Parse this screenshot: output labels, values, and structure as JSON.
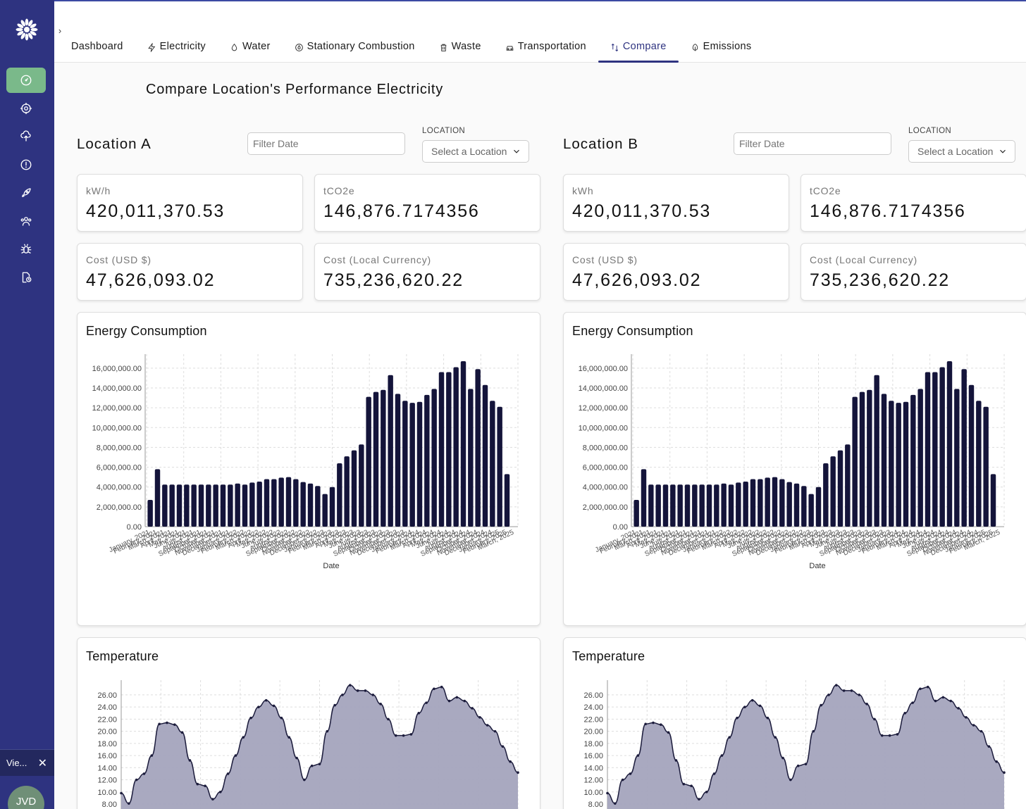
{
  "sidebar": {
    "items": [
      {
        "icon": "gauge-icon",
        "active": true
      },
      {
        "icon": "target-icon",
        "active": false
      },
      {
        "icon": "cloud-upload-icon",
        "active": false
      },
      {
        "icon": "alert-circle-icon",
        "active": false
      },
      {
        "icon": "rocket-icon",
        "active": false
      },
      {
        "icon": "users-icon",
        "active": false
      },
      {
        "icon": "bug-icon",
        "active": false
      },
      {
        "icon": "file-clock-icon",
        "active": false
      }
    ],
    "toast": {
      "label": "Vie...",
      "close": "✕"
    },
    "avatar": "JVD"
  },
  "tabs": [
    {
      "label": "Dashboard",
      "icon": "",
      "active": false
    },
    {
      "label": "Electricity",
      "icon": "zap-icon",
      "active": false
    },
    {
      "label": "Water",
      "icon": "droplet-icon",
      "active": false
    },
    {
      "label": "Stationary Combustion",
      "icon": "flame-icon",
      "active": false
    },
    {
      "label": "Waste",
      "icon": "trash-icon",
      "active": false
    },
    {
      "label": "Transportation",
      "icon": "car-icon",
      "active": false
    },
    {
      "label": "Compare",
      "icon": "compare-icon",
      "active": true
    },
    {
      "label": "Emissions",
      "icon": "leaf-icon",
      "active": false
    }
  ],
  "page_title": "Compare Location's Performance Electricity",
  "locations": [
    {
      "title": "Location A",
      "filter_placeholder": "Filter Date",
      "location_label": "LOCATION",
      "location_value": "Select a Location",
      "metrics": [
        {
          "label": "kW/h",
          "value": "420,011,370.53"
        },
        {
          "label": "tCO2e",
          "value": "146,876.7174356"
        },
        {
          "label": "Cost (USD $)",
          "value": "47,626,093.02"
        },
        {
          "label": "Cost (Local Currency)",
          "value": "735,236,620.22"
        }
      ],
      "energy_title": "Energy Consumption",
      "temperature_title": "Temperature"
    },
    {
      "title": "Location B",
      "filter_placeholder": "Filter Date",
      "location_label": "LOCATION",
      "location_value": "Select a Location",
      "metrics": [
        {
          "label": "kWh",
          "value": "420,011,370.53"
        },
        {
          "label": "tCO2e",
          "value": "146,876.7174356"
        },
        {
          "label": "Cost (USD $)",
          "value": "47,626,093.02"
        },
        {
          "label": "Cost (Local Currency)",
          "value": "735,236,620.22"
        }
      ],
      "energy_title": "Energy Consumption",
      "temperature_title": "Temperature"
    }
  ],
  "colors": {
    "sidebar": "#2e3380",
    "bar": "#14143a",
    "area_fill": "#a4a4bd",
    "area_line": "#1c1c3c",
    "active_nav": "#7ab98a"
  },
  "chart_data": [
    {
      "type": "bar",
      "title": "Energy Consumption",
      "xlabel": "Date",
      "ylabel": "",
      "ylim": [
        0,
        16700000
      ],
      "yticks": [
        "16,000,000.00",
        "14,000,000.00",
        "12,000,000.00",
        "10,000,000.00",
        "8,000,000.00",
        "6,000,000.00",
        "4,000,000.00",
        "2,000,000.00",
        "0.00"
      ],
      "categories": [
        "January, 2021",
        "February, 2021",
        "March, 2021",
        "April, 2021",
        "May, 2021",
        "June, 2021",
        "July, 2021",
        "August, 2021",
        "September, 2021",
        "October, 2021",
        "November, 2021",
        "December, 2021",
        "January, 2022",
        "February, 2022",
        "March, 2022",
        "April, 2022",
        "May, 2022",
        "June, 2022",
        "July, 2022",
        "August, 2022",
        "September, 2022",
        "October, 2022",
        "November, 2022",
        "December, 2022",
        "January, 2023",
        "February, 2023",
        "March, 2023",
        "April, 2023",
        "May, 2023",
        "June, 2023",
        "July, 2023",
        "August, 2023",
        "September, 2023",
        "October, 2023",
        "November, 2023",
        "December, 2023",
        "January, 2024",
        "February, 2024",
        "March, 2024",
        "April, 2024",
        "May, 2024",
        "June, 2024",
        "July, 2024",
        "August, 2024",
        "September, 2024",
        "October, 2024",
        "November, 2024",
        "December, 2024",
        "January, 2025",
        "February, 2025",
        "March, 2025"
      ],
      "values": [
        2700000,
        5800000,
        4250000,
        4250000,
        4250000,
        4250000,
        4250000,
        4250000,
        4250000,
        4250000,
        4250000,
        4250000,
        4350000,
        4250000,
        4450000,
        4550000,
        4800000,
        4800000,
        4950000,
        5000000,
        4800000,
        4500000,
        4350000,
        4100000,
        3300000,
        4000000,
        6400000,
        7100000,
        7700000,
        8300000,
        13100000,
        13600000,
        13800000,
        15300000,
        13400000,
        12700000,
        12500000,
        12600000,
        13300000,
        13900000,
        15600000,
        15600000,
        16100000,
        16700000,
        13900000,
        15900000,
        14300000,
        12700000,
        12100000,
        5300000,
        0
      ]
    },
    {
      "type": "bar",
      "title": "Energy Consumption",
      "xlabel": "Date",
      "ylabel": "",
      "ylim": [
        0,
        16700000
      ],
      "yticks": [
        "16,000,000.00",
        "14,000,000.00",
        "12,000,000.00",
        "10,000,000.00",
        "8,000,000.00",
        "6,000,000.00",
        "4,000,000.00",
        "2,000,000.00",
        "0.00"
      ],
      "categories": [
        "January, 2021",
        "February, 2021",
        "March, 2021",
        "April, 2021",
        "May, 2021",
        "June, 2021",
        "July, 2021",
        "August, 2021",
        "September, 2021",
        "October, 2021",
        "November, 2021",
        "December, 2021",
        "January, 2022",
        "February, 2022",
        "March, 2022",
        "April, 2022",
        "May, 2022",
        "June, 2022",
        "July, 2022",
        "August, 2022",
        "September, 2022",
        "October, 2022",
        "November, 2022",
        "December, 2022",
        "January, 2023",
        "February, 2023",
        "March, 2023",
        "April, 2023",
        "May, 2023",
        "June, 2023",
        "July, 2023",
        "August, 2023",
        "September, 2023",
        "October, 2023",
        "November, 2023",
        "December, 2023",
        "January, 2024",
        "February, 2024",
        "March, 2024",
        "April, 2024",
        "May, 2024",
        "June, 2024",
        "July, 2024",
        "August, 2024",
        "September, 2024",
        "October, 2024",
        "November, 2024",
        "December, 2024",
        "January, 2025",
        "February, 2025",
        "March, 2025"
      ],
      "values": [
        2700000,
        5800000,
        4250000,
        4250000,
        4250000,
        4250000,
        4250000,
        4250000,
        4250000,
        4250000,
        4250000,
        4250000,
        4350000,
        4250000,
        4450000,
        4550000,
        4800000,
        4800000,
        4950000,
        5000000,
        4800000,
        4500000,
        4350000,
        4100000,
        3300000,
        4000000,
        6400000,
        7100000,
        7700000,
        8300000,
        13100000,
        13600000,
        13800000,
        15300000,
        13400000,
        12700000,
        12500000,
        12600000,
        13300000,
        13900000,
        15600000,
        15600000,
        16100000,
        16700000,
        13900000,
        15900000,
        14300000,
        12700000,
        12100000,
        5300000,
        0
      ]
    },
    {
      "type": "area",
      "title": "Temperature",
      "ylim": [
        8,
        27.5
      ],
      "yticks": [
        "26.00",
        "24.00",
        "22.00",
        "20.00",
        "18.00",
        "16.00",
        "14.00",
        "12.00",
        "10.00",
        "8.00"
      ],
      "values": [
        9.8,
        8.1,
        12.0,
        13.0,
        16.0,
        21.2,
        21.4,
        21.1,
        19.8,
        15.2,
        11.3,
        11.0,
        8.8,
        10.0,
        13.0,
        16.0,
        19.0,
        22.2,
        24.0,
        25.1,
        24.2,
        22.2,
        19.0,
        15.6,
        12.0,
        14.3,
        14.6,
        20.0,
        24.3,
        26.0,
        27.6,
        26.7,
        26.7,
        26.0,
        24.5,
        22.0,
        19.3,
        19.3,
        19.5,
        23.0,
        24.7,
        27.0,
        27.3,
        25.0,
        25.6,
        25.0,
        23.8,
        22.3,
        21.0,
        20.0,
        17.5,
        15.0,
        13.2
      ]
    },
    {
      "type": "area",
      "title": "Temperature",
      "ylim": [
        8,
        27.5
      ],
      "yticks": [
        "26.00",
        "24.00",
        "22.00",
        "20.00",
        "18.00",
        "16.00",
        "14.00",
        "12.00",
        "10.00",
        "8.00"
      ],
      "values": [
        9.8,
        8.1,
        12.0,
        13.0,
        16.0,
        21.2,
        21.4,
        21.1,
        19.8,
        15.2,
        11.3,
        11.0,
        8.8,
        10.0,
        13.0,
        16.0,
        19.0,
        22.2,
        24.0,
        25.1,
        24.2,
        22.2,
        19.0,
        15.6,
        12.0,
        14.3,
        14.6,
        20.0,
        24.3,
        26.0,
        27.6,
        26.7,
        26.7,
        26.0,
        24.5,
        22.0,
        19.3,
        19.3,
        19.5,
        23.0,
        24.7,
        27.0,
        27.3,
        25.0,
        25.6,
        25.0,
        23.8,
        22.3,
        21.0,
        20.0,
        17.5,
        15.0,
        13.2
      ]
    }
  ]
}
